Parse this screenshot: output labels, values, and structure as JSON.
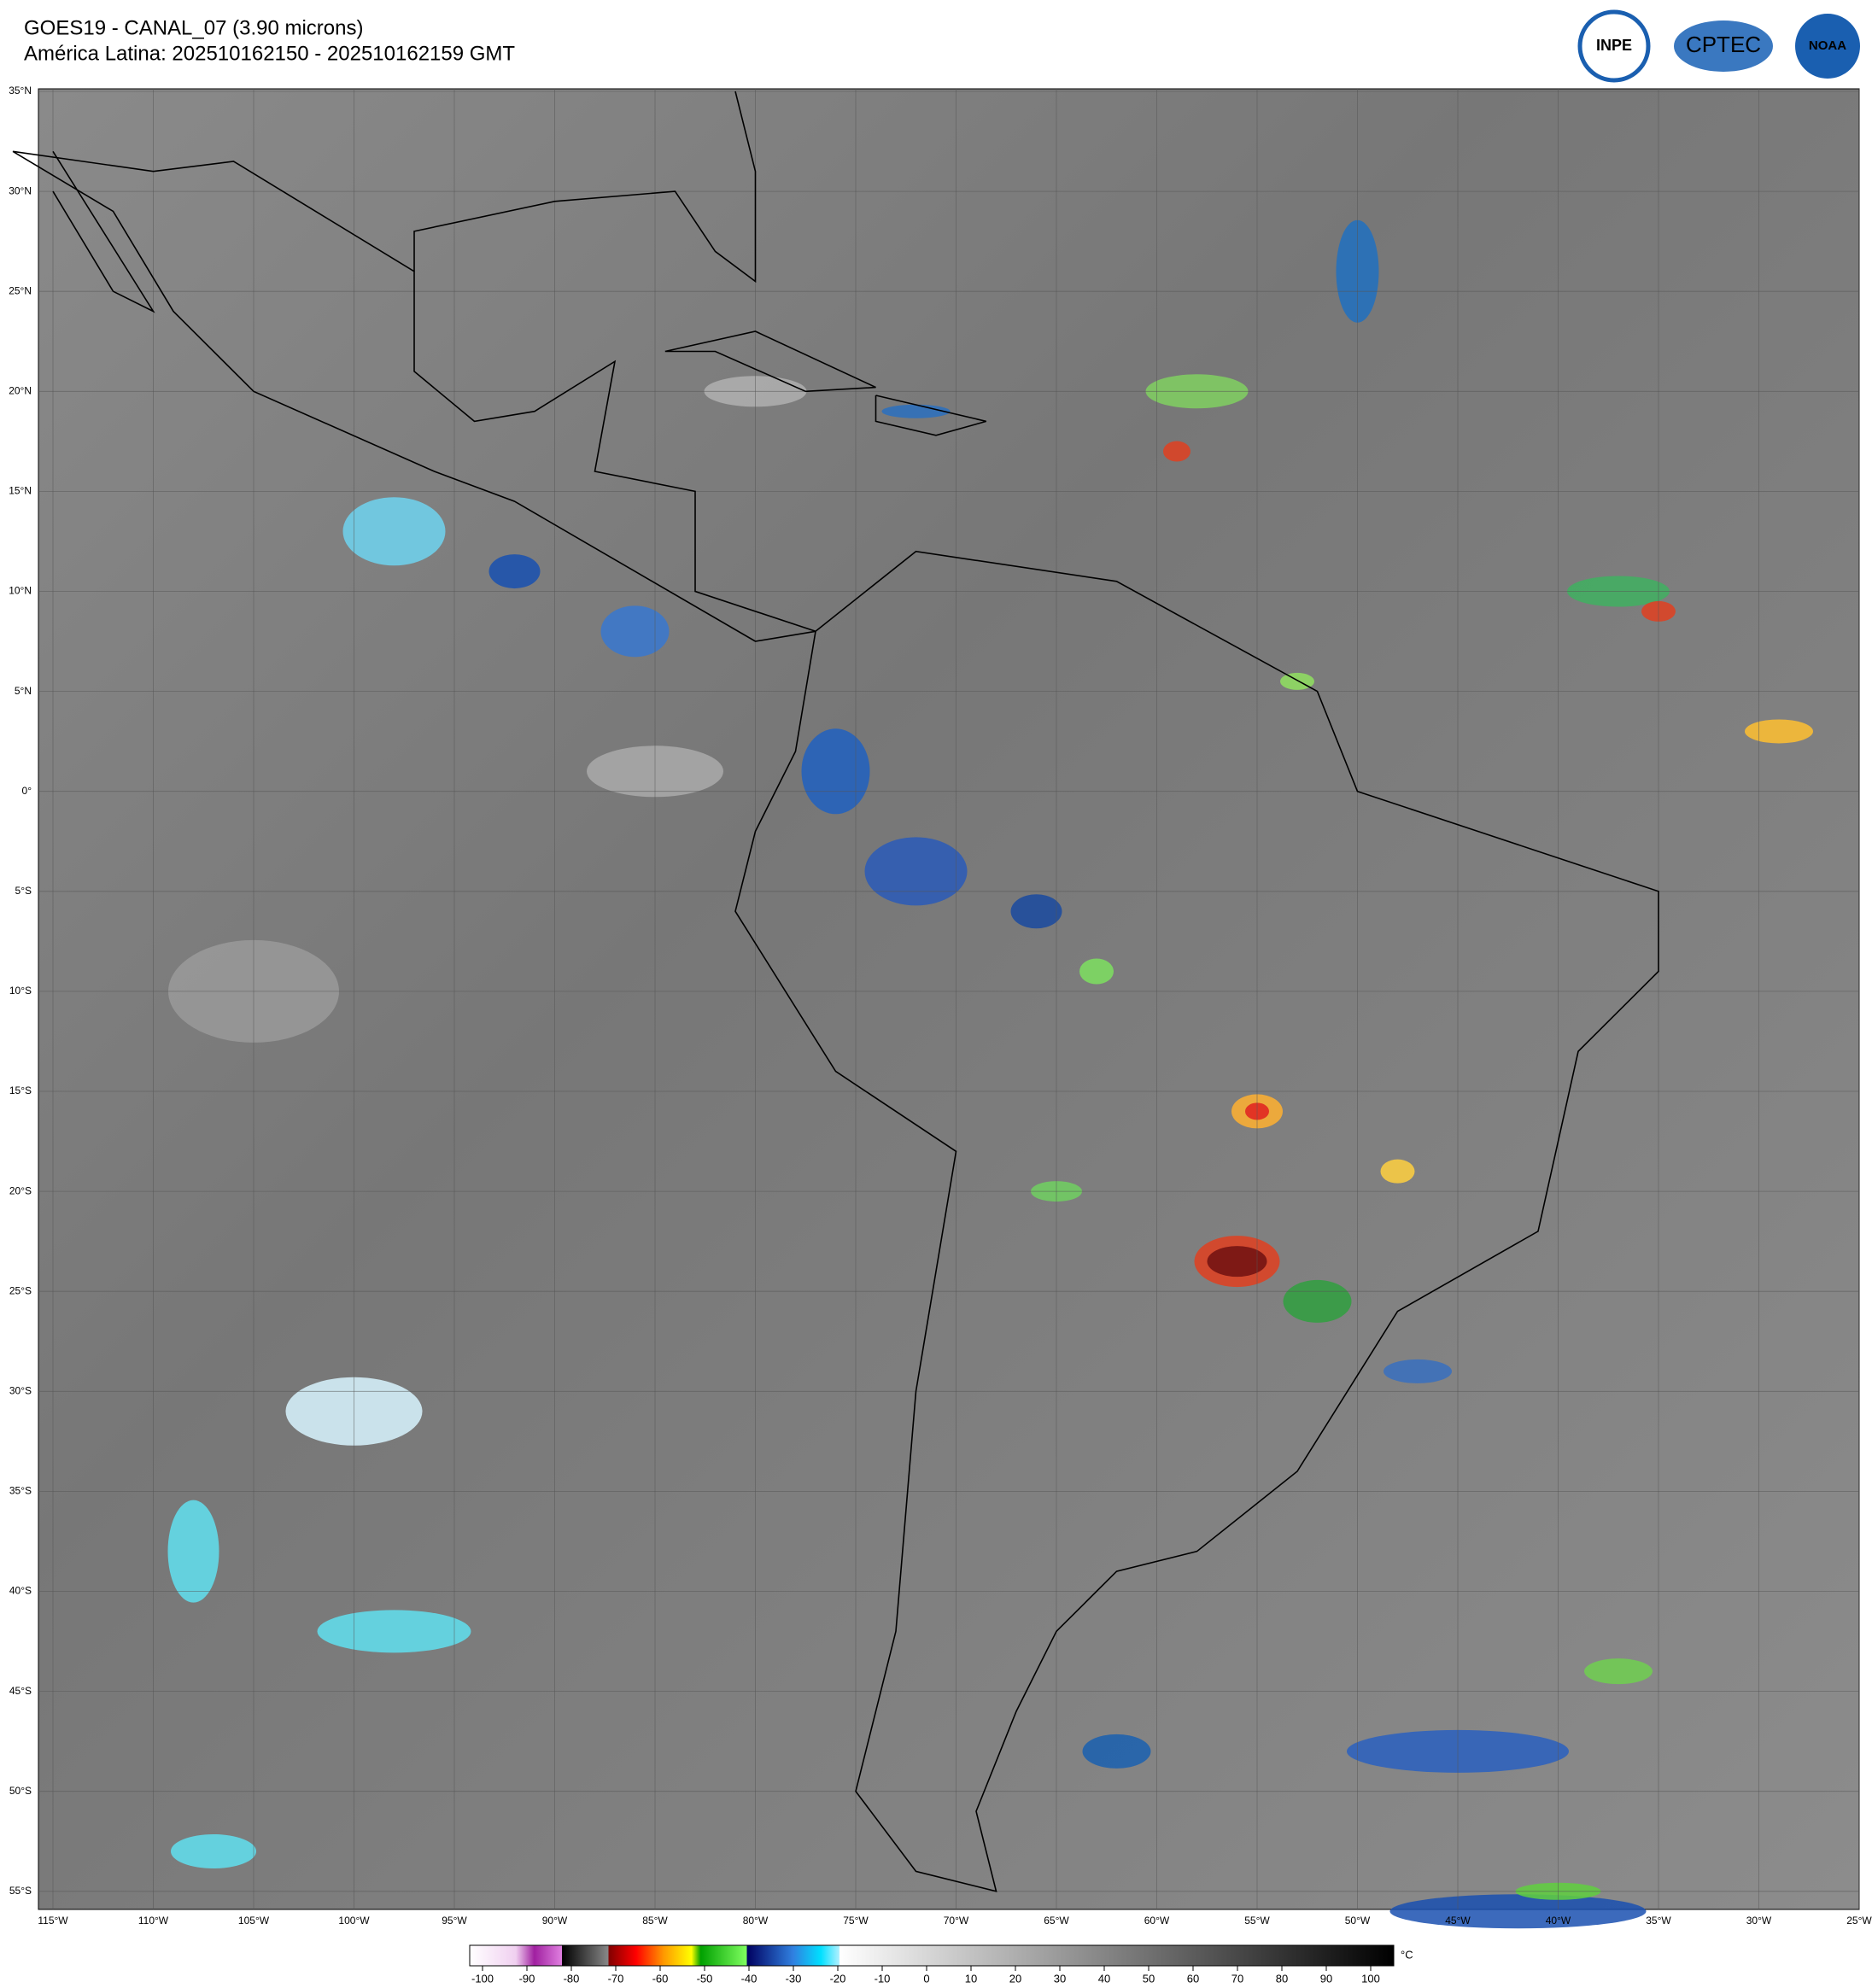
{
  "header": {
    "title": "GOES19 - CANAL_07 (3.90 microns)",
    "subtitle": "América Latina: 202510162150 - 202510162159 GMT"
  },
  "logos": [
    "INPE",
    "CPTEC",
    "NOAA"
  ],
  "map": {
    "lon_labels": [
      "115°W",
      "110°W",
      "105°W",
      "100°W",
      "95°W",
      "90°W",
      "85°W",
      "80°W",
      "75°W",
      "70°W",
      "65°W",
      "60°W",
      "55°W",
      "50°W",
      "45°W",
      "40°W",
      "35°W",
      "30°W",
      "25°W"
    ],
    "lat_labels": [
      "35°N",
      "30°N",
      "25°N",
      "20°N",
      "15°N",
      "10°N",
      "5°N",
      "0°",
      "5°S",
      "10°S",
      "15°S",
      "20°S",
      "25°S",
      "30°S",
      "35°S",
      "40°S",
      "45°S",
      "50°S",
      "55°S"
    ]
  },
  "colorbar": {
    "unit": "°C",
    "ticks": [
      -100,
      -90,
      -80,
      -70,
      -60,
      -50,
      -40,
      -30,
      -20,
      -10,
      0,
      10,
      20,
      30,
      40,
      50,
      60,
      70,
      80,
      90,
      100
    ]
  }
}
